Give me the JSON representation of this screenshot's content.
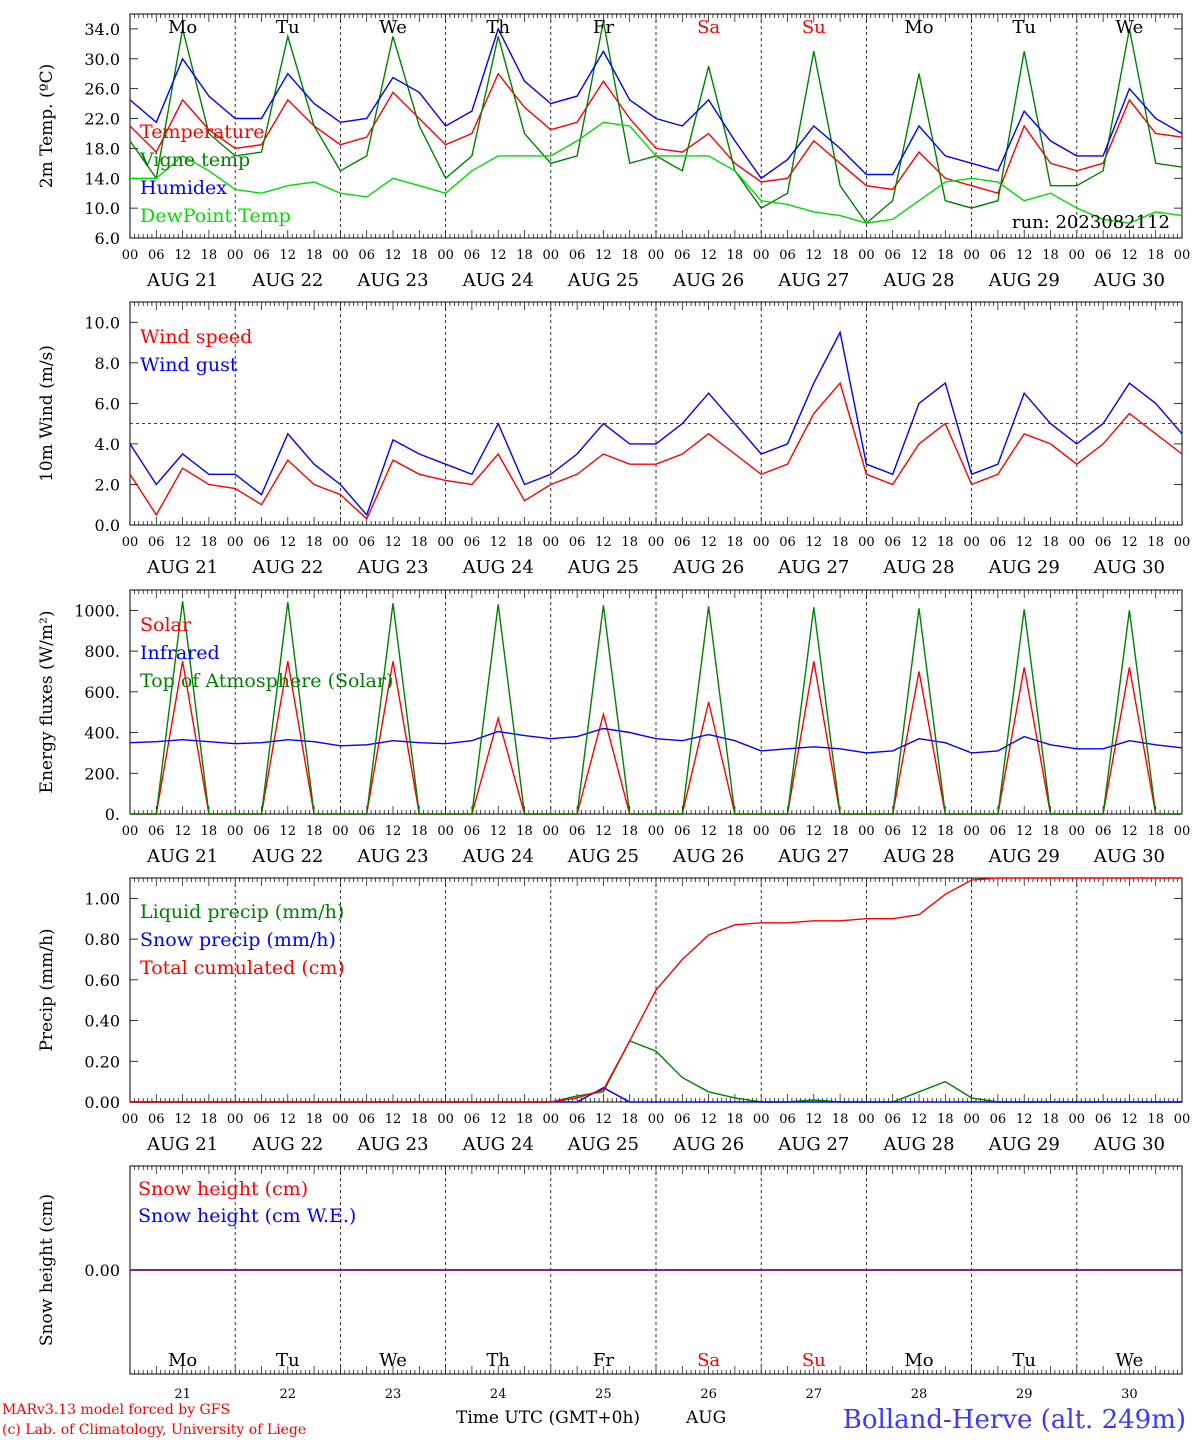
{
  "figure": {
    "credit_line1": "MARv3.13 model forced by GFS",
    "credit_line2": "(c) Lab. of Climatology, University of Liege",
    "x_axis_title": "Time UTC (GMT+0h)",
    "x_axis_month": "AUG",
    "station": "Bolland-Herve (alt. 249m)",
    "run_label": "run: 2023082112",
    "hour_ticks": [
      "00",
      "06",
      "12",
      "18"
    ],
    "days": [
      {
        "day": "21",
        "date_label": "AUG 21",
        "weekday": "Mo",
        "weekend": false
      },
      {
        "day": "22",
        "date_label": "AUG 22",
        "weekday": "Tu",
        "weekend": false
      },
      {
        "day": "23",
        "date_label": "AUG 23",
        "weekday": "We",
        "weekend": false
      },
      {
        "day": "24",
        "date_label": "AUG 24",
        "weekday": "Th",
        "weekend": false
      },
      {
        "day": "25",
        "date_label": "AUG 25",
        "weekday": "Fr",
        "weekend": false
      },
      {
        "day": "26",
        "date_label": "AUG 26",
        "weekday": "Sa",
        "weekend": true
      },
      {
        "day": "27",
        "date_label": "AUG 27",
        "weekday": "Su",
        "weekend": true
      },
      {
        "day": "28",
        "date_label": "AUG 28",
        "weekday": "Mo",
        "weekend": false
      },
      {
        "day": "29",
        "date_label": "AUG 29",
        "weekday": "Tu",
        "weekend": false
      },
      {
        "day": "30",
        "date_label": "AUG 30",
        "weekday": "We",
        "weekend": false
      }
    ],
    "colors": {
      "red": "#ff0000",
      "dark_green": "#008000",
      "blue": "#0000ff",
      "light_green": "#00dd00",
      "purple": "#800080",
      "station_blue": "#3a3aff"
    }
  },
  "chart_data": [
    {
      "type": "line",
      "ylabel": "2m Temp. (ºC)",
      "ylim": [
        6,
        36
      ],
      "yticks": [
        "34.0",
        "30.0",
        "26.0",
        "22.0",
        "18.0",
        "14.0",
        "10.0",
        "6.0"
      ],
      "ytick_values": [
        34,
        30,
        26,
        22,
        18,
        14,
        10,
        6
      ],
      "x_hours": [
        0,
        6,
        12,
        18,
        24,
        30,
        36,
        42,
        48,
        54,
        60,
        66,
        72,
        78,
        84,
        90,
        96,
        102,
        108,
        114,
        120,
        126,
        132,
        138,
        144,
        150,
        156,
        162,
        168,
        174,
        180,
        186,
        192,
        198,
        204,
        210,
        216,
        222,
        228,
        234,
        240
      ],
      "series": [
        {
          "name": "Temperature",
          "color": "#ff0000",
          "values": [
            21,
            17.5,
            24.5,
            20.5,
            18,
            18.5,
            24.5,
            21,
            18.5,
            19.5,
            25.5,
            22,
            18.5,
            20,
            28,
            23.5,
            20.5,
            21.5,
            27,
            22,
            18,
            17.5,
            20,
            16,
            13.5,
            14,
            19,
            16,
            13,
            12.5,
            17.5,
            14,
            13,
            12,
            21,
            16,
            15,
            16,
            24.5,
            20,
            19.5
          ]
        },
        {
          "name": "Vigne temp",
          "color": "#008000",
          "values": [
            19,
            14,
            34,
            20,
            17,
            17.5,
            33,
            21,
            15,
            17,
            33,
            21,
            14,
            17,
            33,
            20,
            16,
            17,
            35,
            16,
            17,
            15,
            29,
            15,
            10,
            12,
            31,
            13,
            8,
            11,
            28,
            11,
            10,
            11,
            31,
            13,
            13,
            15,
            34,
            16,
            15.5
          ]
        },
        {
          "name": "Humidex",
          "color": "#0000ff",
          "values": [
            24.5,
            21.5,
            30,
            25,
            22,
            22,
            28,
            24,
            21.5,
            22,
            27.5,
            25.5,
            21,
            23,
            34,
            27,
            24,
            25,
            31,
            24.5,
            22,
            21,
            24.5,
            19,
            14,
            16.5,
            21,
            18,
            14.5,
            14.5,
            21,
            17,
            16,
            15,
            23,
            19,
            17,
            17,
            26,
            22,
            20
          ]
        },
        {
          "name": "DewPoint Temp",
          "color": "#00dd00",
          "values": [
            14,
            14,
            17,
            15,
            12.5,
            12,
            13,
            13.5,
            12,
            11.5,
            14,
            13,
            12,
            15,
            17,
            17,
            17,
            19,
            21.5,
            21,
            17,
            17,
            17,
            15,
            11,
            10.5,
            9.5,
            9,
            8,
            8.5,
            11,
            13.5,
            14,
            13.5,
            11,
            12,
            10,
            8.5,
            8,
            9.5,
            9
          ]
        }
      ]
    },
    {
      "type": "line",
      "ylabel": "10m Wind (m/s)",
      "ylim": [
        0,
        11
      ],
      "yticks": [
        "10.0",
        "8.0",
        "6.0",
        "4.0",
        "2.0",
        "0.0"
      ],
      "ytick_values": [
        10,
        8,
        6,
        4,
        2,
        0
      ],
      "reference_line": 5,
      "x_hours": [
        0,
        6,
        12,
        18,
        24,
        30,
        36,
        42,
        48,
        54,
        60,
        66,
        72,
        78,
        84,
        90,
        96,
        102,
        108,
        114,
        120,
        126,
        132,
        138,
        144,
        150,
        156,
        162,
        168,
        174,
        180,
        186,
        192,
        198,
        204,
        210,
        216,
        222,
        228,
        234,
        240
      ],
      "series": [
        {
          "name": "Wind speed",
          "color": "#ff0000",
          "values": [
            2.5,
            0.5,
            2.8,
            2,
            1.8,
            1,
            3.2,
            2,
            1.5,
            0.3,
            3.2,
            2.5,
            2.2,
            2,
            3.5,
            1.2,
            2,
            2.5,
            3.5,
            3,
            3,
            3.5,
            4.5,
            3.5,
            2.5,
            3,
            5.5,
            7,
            2.5,
            2,
            4,
            5,
            2,
            2.5,
            4.5,
            4,
            3,
            4,
            5.5,
            4.5,
            3.5
          ]
        },
        {
          "name": "Wind gust",
          "color": "#0000ff",
          "values": [
            4,
            2,
            3.5,
            2.5,
            2.5,
            1.5,
            4.5,
            3,
            2,
            0.5,
            4.2,
            3.5,
            3,
            2.5,
            5,
            2,
            2.5,
            3.5,
            5,
            4,
            4,
            5,
            6.5,
            5,
            3.5,
            4,
            7,
            9.5,
            3,
            2.5,
            6,
            7,
            2.5,
            3,
            6.5,
            5,
            4,
            5,
            7,
            6,
            4.5
          ]
        }
      ]
    },
    {
      "type": "line",
      "ylabel": "Energy fluxes (W/m²)",
      "ylim": [
        0,
        1100
      ],
      "yticks": [
        "1000.",
        "800.",
        "600.",
        "400.",
        "200.",
        "0."
      ],
      "ytick_values": [
        1000,
        800,
        600,
        400,
        200,
        0
      ],
      "x_hours": [
        0,
        6,
        12,
        18,
        24,
        30,
        36,
        42,
        48,
        54,
        60,
        66,
        72,
        78,
        84,
        90,
        96,
        102,
        108,
        114,
        120,
        126,
        132,
        138,
        144,
        150,
        156,
        162,
        168,
        174,
        180,
        186,
        192,
        198,
        204,
        210,
        216,
        222,
        228,
        234,
        240
      ],
      "series": [
        {
          "name": "Solar",
          "color": "#ff0000",
          "values": [
            0,
            0,
            750,
            0,
            0,
            0,
            750,
            0,
            0,
            0,
            750,
            0,
            0,
            0,
            470,
            0,
            0,
            0,
            490,
            0,
            0,
            0,
            550,
            0,
            0,
            0,
            750,
            0,
            0,
            0,
            700,
            0,
            0,
            0,
            720,
            0,
            0,
            0,
            720,
            0,
            0
          ]
        },
        {
          "name": "Infrared",
          "color": "#0000ff",
          "values": [
            350,
            355,
            365,
            355,
            345,
            350,
            365,
            355,
            335,
            340,
            360,
            350,
            345,
            360,
            405,
            385,
            370,
            380,
            420,
            400,
            370,
            360,
            390,
            360,
            310,
            320,
            330,
            320,
            300,
            310,
            370,
            350,
            300,
            310,
            380,
            340,
            320,
            320,
            360,
            340,
            325
          ]
        },
        {
          "name": "Top of Atmosphere (Solar)",
          "color": "#008000",
          "values": [
            0,
            0,
            1045,
            0,
            0,
            0,
            1040,
            0,
            0,
            0,
            1035,
            0,
            0,
            0,
            1030,
            0,
            0,
            0,
            1025,
            0,
            0,
            0,
            1020,
            0,
            0,
            0,
            1015,
            0,
            0,
            0,
            1010,
            0,
            0,
            0,
            1005,
            0,
            0,
            0,
            1000,
            0,
            0
          ]
        }
      ]
    },
    {
      "type": "line",
      "ylabel": "Precip (mm/h)",
      "ylim": [
        0,
        1.1
      ],
      "yticks": [
        "1.00",
        "0.80",
        "0.60",
        "0.40",
        "0.20",
        "0.00"
      ],
      "ytick_values": [
        1,
        0.8,
        0.6,
        0.4,
        0.2,
        0
      ],
      "x_hours": [
        0,
        6,
        12,
        18,
        24,
        30,
        36,
        42,
        48,
        54,
        60,
        66,
        72,
        78,
        84,
        90,
        96,
        102,
        108,
        114,
        120,
        126,
        132,
        138,
        144,
        150,
        156,
        162,
        168,
        174,
        180,
        186,
        192,
        198,
        204,
        210,
        216,
        222,
        228,
        234,
        240
      ],
      "series": [
        {
          "name": "Liquid precip (mm/h)",
          "color": "#008000",
          "values": [
            0,
            0,
            0,
            0,
            0,
            0,
            0,
            0,
            0,
            0,
            0,
            0,
            0,
            0,
            0,
            0,
            0,
            0.03,
            0.05,
            0.3,
            0.25,
            0.12,
            0.05,
            0.02,
            0,
            0,
            0.01,
            0,
            0,
            0,
            0.05,
            0.1,
            0.02,
            0,
            0,
            0,
            0,
            0,
            0,
            0,
            0
          ]
        },
        {
          "name": "Snow precip (mm/h)",
          "color": "#0000ff",
          "values": [
            0,
            0,
            0,
            0,
            0,
            0,
            0,
            0,
            0,
            0,
            0,
            0,
            0,
            0,
            0,
            0,
            0,
            0,
            0.07,
            0,
            0,
            0,
            0,
            0,
            0,
            0,
            0,
            0,
            0,
            0,
            0,
            0,
            0,
            0,
            0,
            0,
            0,
            0,
            0,
            0,
            0
          ]
        },
        {
          "name": "Total cumulated (cm)",
          "color": "#ff0000",
          "values": [
            0,
            0,
            0,
            0,
            0,
            0,
            0,
            0,
            0,
            0,
            0,
            0,
            0,
            0,
            0,
            0,
            0,
            0.02,
            0.06,
            0.3,
            0.55,
            0.7,
            0.82,
            0.87,
            0.88,
            0.88,
            0.89,
            0.89,
            0.9,
            0.9,
            0.92,
            1.02,
            1.09,
            1.1,
            1.1,
            1.1,
            1.1,
            1.1,
            1.1,
            1.1,
            1.1
          ]
        }
      ]
    },
    {
      "type": "line",
      "ylabel": "Snow height (cm)",
      "ylim": [
        -1,
        1
      ],
      "yticks": [
        "0.00"
      ],
      "ytick_values": [
        0
      ],
      "x_hours": [
        0,
        240
      ],
      "series": [
        {
          "name": "Snow height (cm)",
          "color": "#ff0000",
          "values": [
            0,
            0
          ]
        },
        {
          "name": "Snow height (cm W.E.)",
          "color": "#0000ff",
          "values": [
            0,
            0
          ]
        }
      ]
    }
  ]
}
